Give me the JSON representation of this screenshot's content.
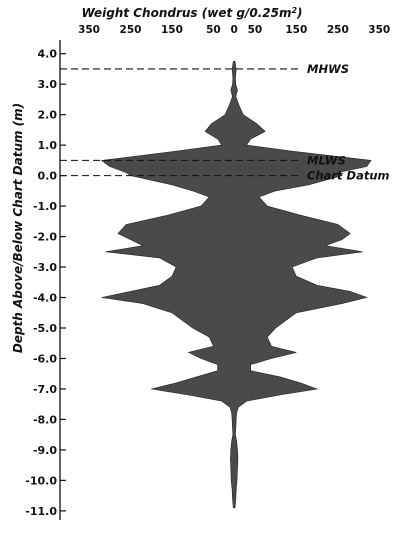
{
  "chart_data": {
    "type": "area",
    "title": "",
    "xlabel": "Weight Chondrus (wet g/0.25m²)",
    "xlabel_parts": [
      "Weight Chondrus (wet g/0.25m",
      "2",
      ")"
    ],
    "ylabel": "Depth Above/Below Chart Datum (m)",
    "top_ticks": [
      {
        "label": "350",
        "value": -350
      },
      {
        "label": "250",
        "value": -250
      },
      {
        "label": "150",
        "value": -150
      },
      {
        "label": "50",
        "value": -50
      },
      {
        "label": "0",
        "value": 0
      },
      {
        "label": "50",
        "value": 50
      },
      {
        "label": "150",
        "value": 150
      },
      {
        "label": "250",
        "value": 250
      },
      {
        "label": "350",
        "value": 350
      }
    ],
    "y_ticks": [
      {
        "label": "4.0",
        "value": 4.0
      },
      {
        "label": "3.0",
        "value": 3.0
      },
      {
        "label": "2.0",
        "value": 2.0
      },
      {
        "label": "1.0",
        "value": 1.0
      },
      {
        "label": "0.0",
        "value": 0.0
      },
      {
        "label": "-1.0",
        "value": -1.0
      },
      {
        "label": "-2.0",
        "value": -2.0
      },
      {
        "label": "-3.0",
        "value": -3.0
      },
      {
        "label": "-4.0",
        "value": -4.0
      },
      {
        "label": "-5.0",
        "value": -5.0
      },
      {
        "label": "-6.0",
        "value": -6.0
      },
      {
        "label": "-7.0",
        "value": -7.0
      },
      {
        "label": "-8.0",
        "value": -8.0
      },
      {
        "label": "-9.0",
        "value": -9.0
      },
      {
        "label": "-10.0",
        "value": -10.0
      },
      {
        "label": "-11.0",
        "value": -11.0
      }
    ],
    "ylim": [
      -11.3,
      4.45
    ],
    "xlim": [
      -420,
      400
    ],
    "reference_lines": [
      {
        "label": "MHWS",
        "depth": 3.5
      },
      {
        "label": "MLWS",
        "depth": 0.5
      },
      {
        "label": "Chart Datum",
        "depth": 0.0
      }
    ],
    "fill_color": "#4a4a4a",
    "profile": {
      "depth": [
        3.75,
        3.5,
        3.2,
        3.0,
        2.8,
        2.6,
        2.3,
        2.0,
        1.7,
        1.45,
        1.2,
        1.0,
        0.8,
        0.5,
        0.3,
        0.1,
        0.0,
        -0.3,
        -0.5,
        -0.7,
        -1.0,
        -1.3,
        -1.6,
        -1.9,
        -2.1,
        -2.3,
        -2.5,
        -2.7,
        -3.0,
        -3.3,
        -3.6,
        -3.8,
        -4.0,
        -4.2,
        -4.5,
        -4.8,
        -5.0,
        -5.3,
        -5.6,
        -5.8,
        -6.0,
        -6.2,
        -6.4,
        -6.6,
        -6.8,
        -7.0,
        -7.2,
        -7.4,
        -7.6,
        -7.8,
        -8.0,
        -8.3,
        -8.5,
        -8.7,
        -9.0,
        -9.3,
        -9.6,
        -10.0,
        -10.3,
        -10.6,
        -10.9
      ],
      "left": [
        -2,
        -5,
        -3,
        -4,
        -8,
        -4,
        -12,
        -22,
        -55,
        -70,
        -40,
        -30,
        -140,
        -320,
        -300,
        -260,
        -250,
        -150,
        -100,
        -60,
        -80,
        -160,
        -260,
        -280,
        -250,
        -220,
        -310,
        -180,
        -140,
        -150,
        -180,
        -250,
        -320,
        -220,
        -150,
        -120,
        -100,
        -60,
        -50,
        -110,
        -80,
        -40,
        -40,
        -90,
        -140,
        -200,
        -110,
        -30,
        -10,
        -6,
        -5,
        -4,
        -3,
        -6,
        -8,
        -9,
        -8,
        -7,
        -5,
        -4,
        -2
      ],
      "right": [
        2,
        5,
        3,
        4,
        8,
        4,
        12,
        22,
        55,
        75,
        40,
        30,
        140,
        330,
        320,
        250,
        260,
        180,
        100,
        60,
        80,
        160,
        250,
        280,
        260,
        220,
        310,
        200,
        140,
        150,
        200,
        280,
        320,
        260,
        150,
        120,
        100,
        80,
        90,
        150,
        90,
        40,
        40,
        110,
        160,
        200,
        110,
        30,
        10,
        6,
        5,
        4,
        3,
        6,
        8,
        9,
        8,
        7,
        5,
        4,
        2
      ]
    }
  }
}
